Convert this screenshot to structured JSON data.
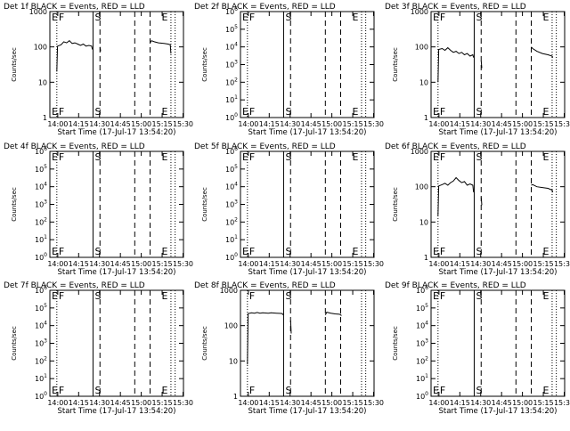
{
  "chart_data": [
    {
      "type": "line",
      "title": "Det 1f BLACK = Events, RED = LLD",
      "xlabel": "Start Time (17-Jul-17 13:54:20)",
      "ylabel": "Counts/sec",
      "yscale": "log",
      "ylim": [
        1,
        1000
      ],
      "yticks": [
        "1",
        "10",
        "100",
        "1000"
      ],
      "xticks": [
        "14:00",
        "14:15",
        "14:30",
        "14:45",
        "15:00",
        "15:15",
        "15:30"
      ],
      "xlim_min": [
        0,
        96
      ],
      "markers": [
        {
          "label": "E",
          "t": 0
        },
        {
          "label": "F",
          "t": 5
        },
        {
          "label": "S",
          "t": 31
        }
      ],
      "marker_E_right": {
        "label": "E",
        "t": 79
      },
      "vlines": {
        "dotted": [
          5,
          87,
          90
        ],
        "solid": [
          31
        ],
        "dashed": [
          36,
          61,
          72
        ]
      },
      "series": [
        {
          "segments": [
            [
              [
                5,
                20
              ],
              [
                5.5,
                105
              ],
              [
                8,
                115
              ],
              [
                10,
                140
              ],
              [
                12,
                130
              ],
              [
                14,
                150
              ],
              [
                16,
                125
              ],
              [
                18,
                130
              ],
              [
                20,
                120
              ],
              [
                22,
                110
              ],
              [
                24,
                120
              ],
              [
                26,
                105
              ],
              [
                28,
                110
              ],
              [
                30,
                105
              ],
              [
                30.5,
                85
              ]
            ],
            [
              [
                36,
                100
              ],
              [
                36.5,
                75
              ]
            ],
            [
              [
                72,
                130
              ],
              [
                73,
                150
              ],
              [
                75,
                140
              ],
              [
                78,
                130
              ],
              [
                82,
                125
              ],
              [
                85,
                120
              ],
              [
                86.5,
                115
              ],
              [
                87,
                65
              ]
            ]
          ]
        }
      ]
    },
    {
      "type": "line",
      "title": "Det 2f BLACK = Events, RED = LLD",
      "xlabel": "Start Time (17-Jul-17 13:54:20)",
      "ylabel": "Counts/sec",
      "yscale": "log",
      "ylim": [
        1,
        1000000
      ],
      "yticks": [
        "10^0",
        "10^1",
        "10^2",
        "10^3",
        "10^4",
        "10^5",
        "10^6"
      ],
      "xticks": [
        "14:00",
        "14:15",
        "14:30",
        "14:45",
        "15:00",
        "15:15",
        "15:30"
      ],
      "markers": [
        {
          "label": "E",
          "t": 0
        },
        {
          "label": "F",
          "t": 5
        },
        {
          "label": "S",
          "t": 31
        },
        {
          "label": "E",
          "t": 79
        }
      ],
      "vlines": {
        "dotted": [
          5,
          87,
          90
        ],
        "solid": [
          31
        ],
        "dashed": [
          36,
          61,
          72
        ]
      },
      "series": []
    },
    {
      "type": "line",
      "title": "Det 3f BLACK = Events, RED = LLD",
      "xlabel": "Start Time (17-Jul-17 13:54:20)",
      "ylabel": "Counts/sec",
      "yscale": "log",
      "ylim": [
        1,
        1000
      ],
      "yticks": [
        "1",
        "10",
        "100",
        "1000"
      ],
      "xticks": [
        "14:00",
        "14:15",
        "14:30",
        "14:45",
        "15:00",
        "15:15",
        "15:30"
      ],
      "markers": [
        {
          "label": "E",
          "t": 0
        },
        {
          "label": "F",
          "t": 5
        },
        {
          "label": "S",
          "t": 31
        },
        {
          "label": "E",
          "t": 79
        }
      ],
      "vlines": {
        "dotted": [
          5,
          87,
          90
        ],
        "solid": [
          31
        ],
        "dashed": [
          36,
          61,
          72
        ]
      },
      "series": [
        {
          "segments": [
            [
              [
                5,
                10
              ],
              [
                5.5,
                85
              ],
              [
                8,
                90
              ],
              [
                10,
                80
              ],
              [
                12,
                95
              ],
              [
                14,
                80
              ],
              [
                16,
                70
              ],
              [
                18,
                75
              ],
              [
                20,
                65
              ],
              [
                22,
                70
              ],
              [
                24,
                60
              ],
              [
                26,
                65
              ],
              [
                28,
                55
              ],
              [
                30,
                60
              ],
              [
                30.5,
                50
              ]
            ],
            [
              [
                36,
                40
              ],
              [
                36.5,
                25
              ]
            ],
            [
              [
                72,
                100
              ],
              [
                73,
                90
              ],
              [
                76,
                75
              ],
              [
                80,
                65
              ],
              [
                84,
                60
              ],
              [
                87,
                55
              ],
              [
                87.5,
                50
              ]
            ]
          ]
        }
      ]
    },
    {
      "type": "line",
      "title": "Det 4f BLACK = Events, RED = LLD",
      "xlabel": "Start Time (17-Jul-17 13:54:20)",
      "ylabel": "Counts/sec",
      "yscale": "log",
      "ylim": [
        1,
        1000000
      ],
      "yticks": [
        "10^0",
        "10^1",
        "10^2",
        "10^3",
        "10^4",
        "10^5",
        "10^6"
      ],
      "xticks": [
        "14:00",
        "14:15",
        "14:30",
        "14:45",
        "15:00",
        "15:15",
        "15:30"
      ],
      "markers": [
        {
          "label": "E",
          "t": 0
        },
        {
          "label": "F",
          "t": 5
        },
        {
          "label": "S",
          "t": 31
        },
        {
          "label": "E",
          "t": 79
        }
      ],
      "vlines": {
        "dotted": [
          5,
          87,
          90
        ],
        "solid": [
          31
        ],
        "dashed": [
          36,
          61,
          72
        ]
      },
      "series": []
    },
    {
      "type": "line",
      "title": "Det 5f BLACK = Events, RED = LLD",
      "xlabel": "Start Time (17-Jul-17 13:54:20)",
      "ylabel": "Counts/sec",
      "yscale": "log",
      "ylim": [
        1,
        1000000
      ],
      "yticks": [
        "10^0",
        "10^1",
        "10^2",
        "10^3",
        "10^4",
        "10^5",
        "10^6"
      ],
      "xticks": [
        "14:00",
        "14:15",
        "14:30",
        "14:45",
        "15:00",
        "15:15",
        "15:30"
      ],
      "markers": [
        {
          "label": "E",
          "t": 0
        },
        {
          "label": "F",
          "t": 5
        },
        {
          "label": "S",
          "t": 31
        },
        {
          "label": "E",
          "t": 79
        }
      ],
      "vlines": {
        "dotted": [
          5,
          87,
          90
        ],
        "solid": [
          31
        ],
        "dashed": [
          36,
          61,
          72
        ]
      },
      "series": []
    },
    {
      "type": "line",
      "title": "Det 6f BLACK = Events, RED = LLD",
      "xlabel": "Start Time (17-Jul-17 13:54:20)",
      "ylabel": "Counts/sec",
      "yscale": "log",
      "ylim": [
        1,
        1000
      ],
      "yticks": [
        "1",
        "10",
        "100",
        "1000"
      ],
      "xticks": [
        "14:00",
        "14:15",
        "14:30",
        "14:45",
        "15:00",
        "15:15",
        "15:30"
      ],
      "markers": [
        {
          "label": "E",
          "t": 0
        },
        {
          "label": "F",
          "t": 5
        },
        {
          "label": "S",
          "t": 31
        },
        {
          "label": "E",
          "t": 79
        }
      ],
      "vlines": {
        "dotted": [
          5,
          87,
          90
        ],
        "solid": [
          31
        ],
        "dashed": [
          36,
          61,
          72
        ]
      },
      "series": [
        {
          "segments": [
            [
              [
                5,
                15
              ],
              [
                5.5,
                105
              ],
              [
                8,
                115
              ],
              [
                10,
                125
              ],
              [
                12,
                110
              ],
              [
                14,
                130
              ],
              [
                16,
                145
              ],
              [
                18,
                180
              ],
              [
                20,
                150
              ],
              [
                22,
                130
              ],
              [
                24,
                140
              ],
              [
                26,
                110
              ],
              [
                28,
                120
              ],
              [
                30,
                110
              ],
              [
                30.5,
                70
              ]
            ],
            [
              [
                36,
                50
              ],
              [
                36.5,
                30
              ]
            ],
            [
              [
                72,
                110
              ],
              [
                73,
                115
              ],
              [
                76,
                100
              ],
              [
                80,
                95
              ],
              [
                84,
                90
              ],
              [
                87,
                80
              ],
              [
                87.5,
                70
              ]
            ]
          ]
        }
      ]
    },
    {
      "type": "line",
      "title": "Det 7f BLACK = Events, RED = LLD",
      "xlabel": "Start Time (17-Jul-17 13:54:20)",
      "ylabel": "Counts/sec",
      "yscale": "log",
      "ylim": [
        1,
        1000000
      ],
      "yticks": [
        "10^0",
        "10^1",
        "10^2",
        "10^3",
        "10^4",
        "10^5",
        "10^6"
      ],
      "xticks": [
        "14:00",
        "14:15",
        "14:30",
        "14:45",
        "15:00",
        "15:15",
        "15:30"
      ],
      "markers": [
        {
          "label": "E",
          "t": 0
        },
        {
          "label": "F",
          "t": 5
        },
        {
          "label": "S",
          "t": 31
        },
        {
          "label": "E",
          "t": 79
        }
      ],
      "vlines": {
        "dotted": [
          5,
          87,
          90
        ],
        "solid": [
          31
        ],
        "dashed": [
          36,
          61,
          72
        ]
      },
      "series": []
    },
    {
      "type": "line",
      "title": "Det 8f BLACK = Events, RED = LLD",
      "xlabel": "Start Time (17-Jul-17 13:54:20)",
      "ylabel": "Counts/sec",
      "yscale": "log",
      "ylim": [
        1,
        1000
      ],
      "yticks": [
        "1",
        "10",
        "100",
        "1000"
      ],
      "xticks": [
        "14:00",
        "14:15",
        "14:30",
        "14:45",
        "15:00",
        "15:15",
        "15:30"
      ],
      "markers": [
        {
          "label": "F",
          "t": 5
        },
        {
          "label": "S",
          "t": 31
        }
      ],
      "vlines": {
        "dotted": [
          5,
          87,
          90
        ],
        "solid": [
          31
        ],
        "dashed": [
          36,
          61,
          72
        ]
      },
      "series": [
        {
          "segments": [
            [
              [
                5,
                8
              ],
              [
                5.5,
                220
              ],
              [
                8,
                230
              ],
              [
                10,
                225
              ],
              [
                12,
                235
              ],
              [
                14,
                225
              ],
              [
                16,
                230
              ],
              [
                18,
                228
              ],
              [
                20,
                225
              ],
              [
                22,
                230
              ],
              [
                24,
                228
              ],
              [
                26,
                225
              ],
              [
                28,
                222
              ],
              [
                30,
                220
              ],
              [
                30.5,
                200
              ]
            ],
            [
              [
                36,
                140
              ],
              [
                36.5,
                60
              ]
            ],
            [
              [
                61,
                200
              ],
              [
                62,
                240
              ],
              [
                65,
                225
              ],
              [
                68,
                215
              ],
              [
                71,
                210
              ],
              [
                72,
                205
              ],
              [
                72.5,
                190
              ]
            ]
          ]
        }
      ]
    },
    {
      "type": "line",
      "title": "Det 9f BLACK = Events, RED = LLD",
      "xlabel": "Start Time (17-Jul-17 13:54:20)",
      "ylabel": "Counts/sec",
      "yscale": "log",
      "ylim": [
        1,
        1000000
      ],
      "yticks": [
        "10^0",
        "10^1",
        "10^2",
        "10^3",
        "10^4",
        "10^5",
        "10^6"
      ],
      "xticks": [
        "14:00",
        "14:15",
        "14:30",
        "14:45",
        "15:00",
        "15:15",
        "15:30"
      ],
      "markers": [
        {
          "label": "E",
          "t": 0
        },
        {
          "label": "F",
          "t": 5
        },
        {
          "label": "S",
          "t": 31
        },
        {
          "label": "E",
          "t": 79
        }
      ],
      "vlines": {
        "dotted": [
          5,
          87,
          90
        ],
        "solid": [
          31
        ],
        "dashed": [
          36,
          61,
          72
        ]
      },
      "series": []
    }
  ]
}
